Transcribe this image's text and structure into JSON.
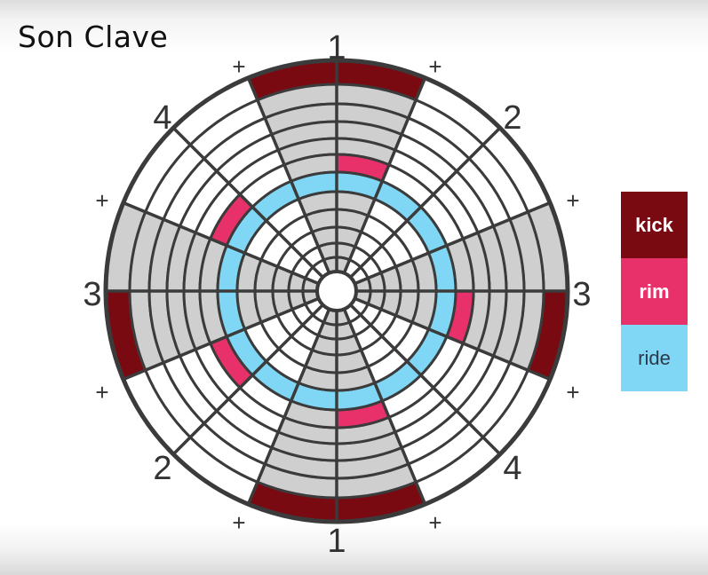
{
  "title": "Son Clave",
  "beat_labels": {
    "top": "1",
    "top_right": "+",
    "upper_right": "2",
    "right_upper": "+",
    "right": "3",
    "right_lower": "+",
    "lower_right": "4",
    "bottom_right": "+",
    "bottom": "1",
    "bottom_left": "+",
    "lower_left": "2",
    "left_lower": "+",
    "left": "3",
    "left_upper": "+",
    "upper_left": "4",
    "top_left": "+"
  },
  "legend": [
    {
      "key": "kick",
      "label": "kick",
      "color": "#7a0a12"
    },
    {
      "key": "rim",
      "label": "rim",
      "color": "#e8316a"
    },
    {
      "key": "ride",
      "label": "ride",
      "color": "#7fd6f5"
    }
  ],
  "colors": {
    "outline": "#3b3b3b",
    "white": "#ffffff",
    "gray": "#cfcfcf",
    "kick": "#7a0a12",
    "rim": "#e8316a",
    "ride": "#7fd6f5"
  },
  "pattern": {
    "steps": 16,
    "rings": 8,
    "background_gray_steps": [
      0,
      3,
      4,
      7,
      8,
      11,
      12,
      15
    ],
    "notes": [
      {
        "ring": 0,
        "instrument": "kick",
        "steps": [
          0,
          4,
          7,
          8,
          11,
          15
        ]
      },
      {
        "ring": 5,
        "instrument": "rim",
        "steps": [
          0,
          4,
          7,
          10,
          13
        ]
      },
      {
        "ring": 6,
        "instrument": "ride",
        "steps": [
          0,
          1,
          2,
          3,
          4,
          5,
          6,
          7,
          8,
          9,
          10,
          11,
          12,
          13,
          14,
          15
        ]
      }
    ]
  }
}
